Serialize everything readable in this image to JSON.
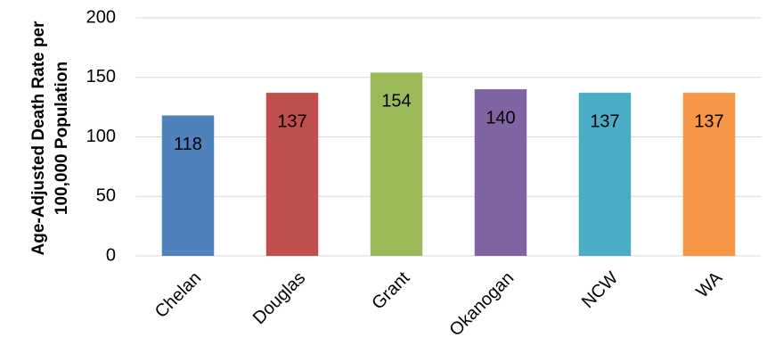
{
  "chart_data": {
    "type": "bar",
    "y_label": [
      "Age-Adjusted Death Rate per",
      "100,000 Population"
    ],
    "categories": [
      "Chelan",
      "Douglas",
      "Grant",
      "Okanogan",
      "NCW",
      "WA"
    ],
    "values": [
      118,
      137,
      154,
      140,
      137,
      137
    ],
    "colors": [
      "#4f81bd",
      "#c0504d",
      "#9bbb59",
      "#8064a2",
      "#4bacc6",
      "#f79646"
    ],
    "ylim": [
      0,
      200
    ],
    "yticks": [
      0,
      50,
      100,
      150,
      200
    ],
    "grid": true
  }
}
